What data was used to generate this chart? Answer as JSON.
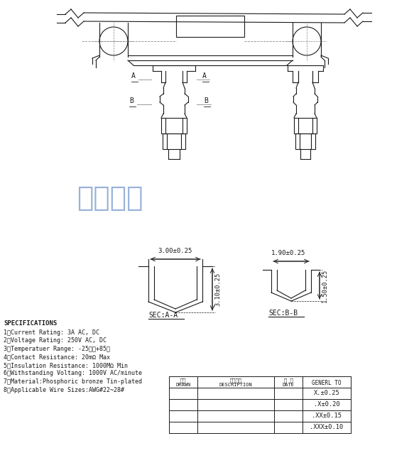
{
  "bg_color": "#ffffff",
  "line_color": "#1a1a1a",
  "chinese_text_color": "#7799cc",
  "chinese_text": "宏运电子",
  "specs": [
    "SPECIFICATIONS",
    "1、Current Rating: 3A AC, DC",
    "2、Voltage Rating: 250V AC, DC",
    "3、Temperatuer Range: -25℃～+85℃",
    "4、Contact Resistance: 20mΩ Max",
    "5、Insulation Resistance: 1000MΩ Min",
    "6、Withstanding Voltang: 1000V AC/minute",
    "7、Material:Phosphoric bronze Tin-plated",
    "8、Applicable Wire Sizes:AWG#22~28#"
  ],
  "sec_aa_label": "SEC:A-A",
  "sec_bb_label": "SEC:B-B",
  "dim1": "3.00±0.25",
  "dim2": "3.10±0.25",
  "dim3": "1.90±0.25",
  "dim4": "1.50±0.25",
  "table_rows": [
    [
      "",
      "",
      "",
      "X.±0.25"
    ],
    [
      "",
      "",
      "",
      ".X±0.20"
    ],
    [
      "",
      "",
      "",
      ".XX±0.15"
    ],
    [
      "",
      "",
      "",
      ".XXX±0.10"
    ]
  ]
}
